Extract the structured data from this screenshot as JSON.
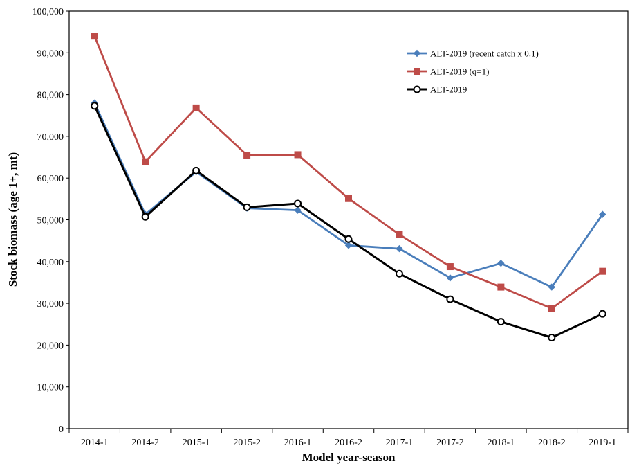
{
  "chart_data": {
    "type": "line",
    "title": "",
    "xlabel": "Model year-season",
    "ylabel": "Stock biomass (age 1+, mt)",
    "ylim": [
      0,
      100000
    ],
    "yticks": [
      0,
      10000,
      20000,
      30000,
      40000,
      50000,
      60000,
      70000,
      80000,
      90000,
      100000
    ],
    "ytick_labels": [
      "0",
      "10,000",
      "20,000",
      "30,000",
      "40,000",
      "50,000",
      "60,000",
      "70,000",
      "80,000",
      "90,000",
      "100,000"
    ],
    "categories": [
      "2014-1",
      "2014-2",
      "2015-1",
      "2015-2",
      "2016-1",
      "2016-2",
      "2017-1",
      "2017-2",
      "2018-1",
      "2018-2",
      "2019-1"
    ],
    "grid": false,
    "legend_position": "top-right",
    "series": [
      {
        "name": "ALT-2019 (recent catch x 0.1)",
        "color": "#4a7ebb",
        "marker": "diamond",
        "values": [
          78000,
          51300,
          61500,
          52800,
          52300,
          43900,
          43100,
          36100,
          39600,
          33900,
          51300
        ]
      },
      {
        "name": "ALT-2019 (q=1)",
        "color": "#be4b48",
        "marker": "square",
        "values": [
          94000,
          63900,
          76800,
          65500,
          65600,
          55100,
          46500,
          38800,
          33900,
          28800,
          37700
        ]
      },
      {
        "name": "ALT-2019",
        "color": "#000000",
        "marker": "circle-open",
        "values": [
          77300,
          50700,
          61800,
          53000,
          53900,
          45400,
          37100,
          31000,
          25600,
          21800,
          27500
        ]
      }
    ]
  }
}
